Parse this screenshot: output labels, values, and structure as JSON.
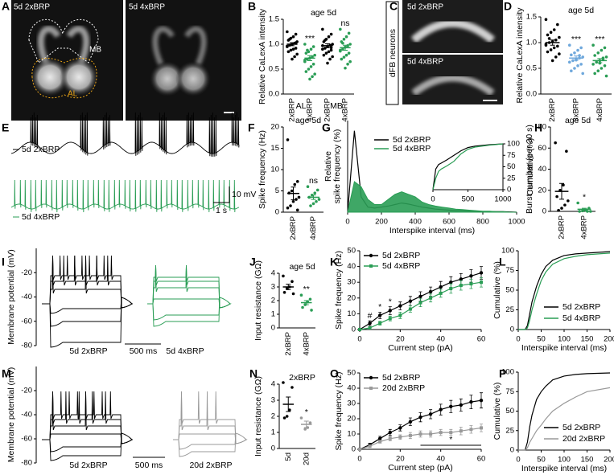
{
  "panel_labels": [
    "A",
    "B",
    "C",
    "D",
    "E",
    "F",
    "G",
    "H",
    "I",
    "J",
    "K",
    "L",
    "M",
    "N",
    "O",
    "P"
  ],
  "images": {
    "A": {
      "panels": [
        "5d 2xBRP",
        "5d 4xBRP"
      ],
      "regions": [
        "MB",
        "AL"
      ]
    },
    "C": {
      "label": "dFB neurons",
      "panels": [
        "5d 2xBRP",
        "5d 4xBRP"
      ]
    }
  },
  "chart_data": [
    {
      "type": "strip",
      "title": "age 5d",
      "ylabel": "Relative CaLexA intensity",
      "categories": [
        "2xBRP",
        "4xBRP",
        "2xBRP",
        "4xBRP"
      ],
      "group_labels": [
        "AL",
        "MB"
      ],
      "colors": [
        "#000000",
        "#2a9d55",
        "#000000",
        "#2a9d55"
      ],
      "points": [
        [
          1.25,
          1.2,
          1.15,
          1.12,
          1.08,
          1.05,
          1.02,
          1.0,
          0.98,
          0.95,
          0.92,
          0.9,
          0.88,
          0.85,
          0.8,
          0.75,
          0.7,
          1.1,
          0.96,
          1.03
        ],
        [
          1.0,
          0.95,
          0.9,
          0.85,
          0.82,
          0.78,
          0.75,
          0.72,
          0.7,
          0.65,
          0.6,
          0.55,
          0.5,
          0.45,
          0.4,
          0.35,
          0.3,
          0.88,
          0.68
        ],
        [
          1.3,
          1.2,
          1.15,
          1.1,
          1.05,
          1.0,
          0.98,
          0.95,
          0.92,
          0.9,
          0.88,
          0.85,
          0.82,
          0.78,
          0.75,
          0.7,
          0.62,
          1.08,
          0.97,
          0.93
        ],
        [
          1.3,
          1.22,
          1.15,
          1.1,
          1.05,
          1.0,
          0.97,
          0.94,
          0.9,
          0.86,
          0.82,
          0.78,
          0.74,
          0.7,
          0.65,
          0.6,
          0.52,
          1.02,
          0.88
        ]
      ],
      "means": [
        1.0,
        0.72,
        0.97,
        0.93
      ],
      "errors": [
        0.03,
        0.05,
        0.04,
        0.05
      ],
      "annotations": [
        {
          "text": "***",
          "category": 1
        },
        {
          "text": "ns",
          "category": 3
        }
      ],
      "ylim": [
        0,
        1.5
      ],
      "yticks": [
        {
          "value": 0,
          "label": "0.0"
        },
        0.5,
        {
          "value": 1,
          "label": "1.0"
        },
        1.5
      ]
    },
    {
      "type": "strip",
      "title": "age 5d",
      "ylabel": "Relative CaLexA intensity",
      "categories": [
        "2xBRP",
        "3xBRP",
        "4xBRP"
      ],
      "colors": [
        "#000000",
        "#6fa8dc",
        "#2a9d55"
      ],
      "points": [
        [
          1.45,
          1.35,
          1.25,
          1.2,
          1.15,
          1.1,
          1.05,
          1.02,
          1.0,
          0.97,
          0.93,
          0.9,
          0.86,
          0.82,
          0.78,
          0.72,
          0.65,
          1.08,
          0.95
        ],
        [
          0.95,
          0.9,
          0.85,
          0.8,
          0.76,
          0.72,
          0.7,
          0.68,
          0.65,
          0.62,
          0.58,
          0.55,
          0.5,
          0.45,
          0.4,
          0.75,
          0.66
        ],
        [
          0.95,
          0.9,
          0.85,
          0.8,
          0.75,
          0.72,
          0.68,
          0.65,
          0.62,
          0.58,
          0.55,
          0.5,
          0.45,
          0.4,
          0.35,
          0.7,
          0.6
        ]
      ],
      "means": [
        1.0,
        0.7,
        0.65
      ],
      "errors": [
        0.05,
        0.04,
        0.04
      ],
      "annotations": [
        {
          "text": "***",
          "category": 1
        },
        {
          "text": "***",
          "category": 2
        }
      ],
      "ylim": [
        0,
        1.5
      ],
      "yticks": [
        {
          "value": 0,
          "label": "0.0"
        },
        0.5,
        {
          "value": 1,
          "label": "1.0"
        },
        1.5
      ]
    },
    {
      "type": "strip",
      "title": "age 5d",
      "ylabel": "Spike frequency (Hz)",
      "categories": [
        "2xBRP",
        "4xBRP"
      ],
      "colors": [
        "#000000",
        "#2a9d55"
      ],
      "points": [
        [
          17,
          7.2,
          6.5,
          5,
          4.5,
          3.5,
          3,
          2.5,
          1.5,
          1,
          0.5
        ],
        [
          6,
          5.2,
          4.5,
          4,
          3.5,
          3,
          2.5,
          2,
          1.5
        ]
      ],
      "means": [
        4.4,
        3.5
      ],
      "errors": [
        1.5,
        0.5
      ],
      "annotations": [
        {
          "text": "ns",
          "category": 1
        }
      ],
      "ylim": [
        0,
        20
      ],
      "yticks": [
        0,
        5,
        10,
        15,
        20
      ]
    },
    {
      "type": "line",
      "ylabel": [
        "Relative",
        "spike frequency (%)"
      ],
      "xlabel": "Interspike interval (ms)",
      "legend": "upper center",
      "x": [
        0,
        40,
        80,
        120,
        160,
        200,
        240,
        280,
        320,
        360,
        400,
        440,
        480,
        520,
        560,
        600,
        640,
        680,
        720,
        760,
        800,
        840,
        880,
        920,
        960,
        1000
      ],
      "series": [
        {
          "name": "5d 2xBRP",
          "color": "#000000",
          "values": [
            0,
            16,
            3,
            1,
            0.8,
            1,
            1.2,
            1.5,
            1.8,
            1.6,
            1.3,
            1,
            0.8,
            0.6,
            0.5,
            0.4,
            0.3,
            0.3,
            0.2,
            0.2,
            0.1,
            0.1,
            0.1,
            0.1,
            0.05,
            0
          ]
        },
        {
          "name": "5d 4xBRP",
          "color": "#2a9d55",
          "fill": true,
          "values": [
            0,
            6,
            5,
            2.5,
            1.5,
            1.5,
            2.5,
            3.5,
            4,
            3.5,
            3,
            2,
            1.5,
            1.2,
            1,
            0.8,
            0.6,
            0.5,
            0.4,
            0.3,
            0.2,
            0.2,
            0.1,
            0.1,
            0,
            0
          ]
        }
      ],
      "xlim": [
        0,
        1000
      ],
      "xticks": [
        0,
        200,
        400,
        600,
        800,
        1000
      ],
      "ylim": [
        0,
        18
      ]
    },
    {
      "type": "line",
      "ylabel": "Cumulative (%)",
      "yaxis": "right",
      "x": [
        0,
        40,
        80,
        120,
        200,
        300,
        400,
        500,
        600,
        800,
        1000
      ],
      "series": [
        {
          "color": "#000000",
          "values": [
            0,
            45,
            55,
            58,
            65,
            75,
            85,
            92,
            95,
            98,
            100
          ]
        },
        {
          "color": "#2a9d55",
          "values": [
            0,
            25,
            40,
            45,
            52,
            62,
            78,
            88,
            93,
            97,
            100
          ]
        }
      ],
      "xlim": [
        0,
        1000
      ],
      "xticks": [
        0,
        500,
        1000
      ],
      "ylim": [
        0,
        100
      ],
      "yticks": [
        0,
        25,
        50,
        75,
        100
      ]
    },
    {
      "type": "strip",
      "title": "age 5d",
      "ylabel": "Burst number (per 30 s)",
      "categories": [
        "2xBRP",
        "4xBRP"
      ],
      "colors": [
        "#000000",
        "#2a9d55"
      ],
      "points": [
        [
          65,
          57,
          25,
          20,
          14,
          10,
          6,
          3,
          1
        ],
        [
          8,
          3,
          1,
          0.5,
          0,
          0,
          0
        ]
      ],
      "means": [
        19,
        2
      ],
      "errors": [
        7.5,
        1
      ],
      "annotations": [
        {
          "text": "*",
          "category": 1
        }
      ],
      "ylim": [
        0,
        80
      ],
      "yticks": [
        0,
        20,
        40,
        60,
        80
      ]
    },
    {
      "type": "strip",
      "title": "age 5d",
      "ylabel": "Input resistance (GΩ)",
      "categories": [
        "2xBRP",
        "4xBRP"
      ],
      "colors": [
        "#000000",
        "#2a9d55"
      ],
      "points": [
        [
          3.8,
          3.4,
          3.0,
          2.9,
          2.6,
          2.5
        ],
        [
          2.4,
          2.1,
          1.9,
          1.7,
          1.5,
          1.3
        ]
      ],
      "means": [
        3.0,
        1.85
      ],
      "errors": [
        0.2,
        0.15
      ],
      "annotations": [
        {
          "text": "**",
          "category": 1
        }
      ],
      "ylim": [
        0,
        4
      ],
      "yticks": [
        0,
        1,
        2,
        3,
        4
      ]
    },
    {
      "type": "line",
      "ylabel": "Spike frequency (Hz)",
      "xlabel": "Current step (pA)",
      "legend": "upper left",
      "x": [
        0,
        5,
        10,
        15,
        20,
        25,
        30,
        35,
        40,
        45,
        50,
        55,
        60
      ],
      "series": [
        {
          "name": "5d 2xBRP",
          "color": "#000000",
          "marker": "circle",
          "values": [
            0,
            4,
            9,
            12,
            15,
            18,
            21,
            24,
            27,
            30,
            32,
            34,
            36
          ],
          "errors": [
            0.5,
            1.5,
            2,
            2.5,
            2.5,
            3,
            3,
            3,
            3.5,
            3.5,
            3.5,
            4,
            4
          ]
        },
        {
          "name": "5d 4xBRP",
          "color": "#2a9d55",
          "marker": "square",
          "values": [
            0,
            1,
            4,
            7,
            9,
            13,
            17,
            20,
            23,
            26,
            28,
            29,
            30
          ],
          "errors": [
            0.3,
            0.8,
            1.2,
            1.5,
            2,
            2,
            2.5,
            2.5,
            2.5,
            3,
            3,
            3,
            3
          ]
        }
      ],
      "annotations": [
        {
          "text": "#",
          "x": 5
        },
        {
          "text": "*",
          "x": 10
        },
        {
          "text": "*",
          "x": 15
        }
      ],
      "xlim": [
        0,
        60
      ],
      "xticks": [
        0,
        20,
        40,
        60
      ],
      "ylim": [
        0,
        50
      ],
      "yticks": [
        0,
        10,
        20,
        30,
        40,
        50
      ]
    },
    {
      "type": "line",
      "ylabel": "Cumulative (%)",
      "xlabel": "Interspike interval (ms)",
      "legend": "lower right",
      "x": [
        0,
        15,
        20,
        25,
        30,
        40,
        50,
        60,
        75,
        100,
        125,
        150,
        200
      ],
      "series": [
        {
          "name": "5d 2xBRP",
          "color": "#000000",
          "values": [
            0,
            0,
            5,
            20,
            35,
            55,
            70,
            80,
            88,
            94,
            96,
            97,
            99
          ]
        },
        {
          "name": "5d 4xBRP",
          "color": "#2a9d55",
          "values": [
            0,
            0,
            2,
            12,
            25,
            45,
            62,
            73,
            83,
            90,
            93,
            95,
            97
          ]
        }
      ],
      "xlim": [
        0,
        200
      ],
      "xticks": [
        0,
        50,
        100,
        150,
        200
      ],
      "ylim": [
        0,
        100
      ],
      "yticks": [
        0,
        25,
        50,
        75,
        100
      ]
    },
    {
      "type": "strip",
      "title": "2xBRP",
      "ylabel": "Input resistance (GΩ)",
      "categories": [
        "5d",
        "20d"
      ],
      "colors": [
        "#000000",
        "#999999"
      ],
      "points": [
        [
          4.1,
          3.8,
          2.4,
          2.0,
          1.9
        ],
        [
          1.9,
          1.6,
          1.3,
          1.2
        ]
      ],
      "means": [
        2.75,
        1.5
      ],
      "errors": [
        0.45,
        0.2
      ],
      "annotations": [
        {
          "text": "*",
          "category": 1
        }
      ],
      "ylim": [
        0,
        4
      ],
      "yticks": [
        0,
        1,
        2,
        3,
        4
      ]
    },
    {
      "type": "line",
      "ylabel": "Spike frequency (Hz)",
      "xlabel": "Current step (pA)",
      "legend": "upper left",
      "x": [
        0,
        5,
        10,
        15,
        20,
        25,
        30,
        35,
        40,
        45,
        50,
        55,
        60
      ],
      "series": [
        {
          "name": "5d 2xBRP",
          "color": "#000000",
          "marker": "circle",
          "values": [
            0,
            3,
            7,
            11,
            14,
            18,
            21,
            23,
            26,
            28,
            29,
            31,
            32
          ],
          "errors": [
            0.5,
            1,
            1.5,
            2,
            2,
            2.5,
            3,
            3,
            3.5,
            4,
            4,
            4.5,
            5
          ]
        },
        {
          "name": "20d 2xBRP",
          "color": "#999999",
          "marker": "square",
          "values": [
            0,
            2,
            5,
            7,
            8,
            9,
            10,
            10,
            11,
            11,
            12,
            13,
            14
          ],
          "errors": [
            0.3,
            0.8,
            1,
            1.5,
            1.5,
            2,
            2,
            2,
            2,
            2,
            2.5,
            2.5,
            2.5
          ]
        }
      ],
      "annotations": [
        {
          "text": "*",
          "span": [
            30,
            60
          ]
        }
      ],
      "xlim": [
        0,
        60
      ],
      "xticks": [
        0,
        20,
        40,
        60
      ],
      "ylim": [
        0,
        50
      ],
      "yticks": [
        0,
        10,
        20,
        30,
        40,
        50
      ]
    },
    {
      "type": "line",
      "ylabel": "Cumulative (%)",
      "xlabel": "Interspike interval (ms)",
      "legend": "lower right",
      "x": [
        0,
        15,
        20,
        25,
        30,
        40,
        50,
        60,
        75,
        100,
        125,
        150,
        200
      ],
      "series": [
        {
          "name": "5d 2xBRP",
          "color": "#000000",
          "values": [
            0,
            0,
            10,
            30,
            45,
            65,
            75,
            82,
            90,
            95,
            97,
            98,
            99
          ]
        },
        {
          "name": "20d 2xBRP",
          "color": "#999999",
          "values": [
            0,
            0,
            3,
            10,
            15,
            25,
            32,
            40,
            50,
            60,
            68,
            75,
            80
          ]
        }
      ],
      "xlim": [
        0,
        200
      ],
      "xticks": [
        0,
        50,
        100,
        150,
        200
      ],
      "ylim": [
        0,
        100
      ],
      "yticks": [
        0,
        25,
        50,
        75,
        100
      ]
    },
    {
      "type": "traces",
      "series": [
        {
          "name": "5d 2xBRP",
          "color": "#000000"
        },
        {
          "name": "5d 4xBRP",
          "color": "#2a9d55"
        }
      ],
      "scalebar": [
        "10 mV",
        "1 s"
      ]
    },
    {
      "type": "traces",
      "ylabel": "Membrane potential (mV)",
      "ylim": [
        -80,
        0
      ],
      "yticks": [
        -80,
        -60,
        -40,
        -20
      ],
      "series": [
        {
          "name": "5d 2xBRP",
          "color": "#000000"
        },
        {
          "name": "5d 4xBRP",
          "color": "#2a9d55"
        }
      ],
      "scalebar": [
        "500 ms"
      ]
    },
    {
      "type": "traces",
      "ylabel": "Membrane potential (mV)",
      "ylim": [
        -80,
        0
      ],
      "yticks": [
        -80,
        -60,
        -40,
        -20
      ],
      "series": [
        {
          "name": "5d 2xBRP",
          "color": "#000000"
        },
        {
          "name": "20d 2xBRP",
          "color": "#999999"
        }
      ],
      "scalebar": [
        "500 ms"
      ]
    }
  ]
}
